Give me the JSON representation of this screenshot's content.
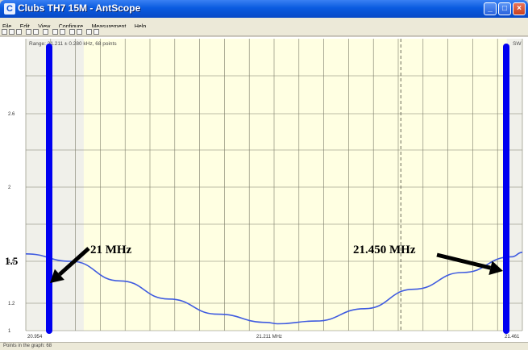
{
  "window": {
    "title": "Clubs TH7 15M - AntScope",
    "icon": "antscope-app-icon",
    "controls": {
      "minimize": "_",
      "maximize": "□",
      "close": "×"
    }
  },
  "menu": [
    "File",
    "Edit",
    "View",
    "Configure",
    "Measurement",
    "Help"
  ],
  "toolbar": {
    "icons": [
      "new-icon",
      "open-icon",
      "save-icon",
      "copy-icon",
      "paste-icon",
      "print-icon",
      "zoom-in-icon",
      "zoom-out-icon",
      "undo-icon",
      "redo-icon",
      "marker-icon",
      "scan-icon"
    ]
  },
  "plot": {
    "range_label": "Range: 21.211 ± 0.280 kHz, 68 points",
    "right_tag": "SW",
    "x_tick_labels": [
      "20.954",
      "21.211 MHz",
      "21.461"
    ],
    "y_tick_labels": [
      "2.6",
      "2",
      "1.5",
      "1.2",
      "1"
    ],
    "colors": {
      "plot_bg": "#ffffe2",
      "grid": "#7d7d6a",
      "curve": "#3f5be0",
      "marker": "#0000f0",
      "shaded_band": "#f0f0ea"
    }
  },
  "annotations": {
    "left_freq": "21 MHz",
    "right_freq": "21.450 MHz",
    "swr_value": "1.5"
  },
  "chart_data": {
    "type": "line",
    "title": "",
    "xlabel": "",
    "ylabel": "",
    "xlim": [
      20.954,
      21.461
    ],
    "x_ticks": [
      20.954,
      21.211,
      21.461
    ],
    "y_scale": "swr",
    "y_ticks": [
      1.0,
      1.2,
      1.5,
      2.0,
      2.6
    ],
    "grid": true,
    "series": [
      {
        "x": [
          20.954,
          21.0,
          21.05,
          21.1,
          21.15,
          21.2,
          21.211,
          21.25,
          21.3,
          21.35,
          21.4,
          21.45,
          21.461
        ],
        "y": [
          1.55,
          1.5,
          1.36,
          1.23,
          1.12,
          1.06,
          1.05,
          1.07,
          1.16,
          1.3,
          1.42,
          1.53,
          1.56
        ]
      }
    ],
    "markers": [
      {
        "x": 21.0,
        "label": "21 MHz"
      },
      {
        "x": 21.45,
        "label": "21.450 MHz"
      }
    ]
  }
}
